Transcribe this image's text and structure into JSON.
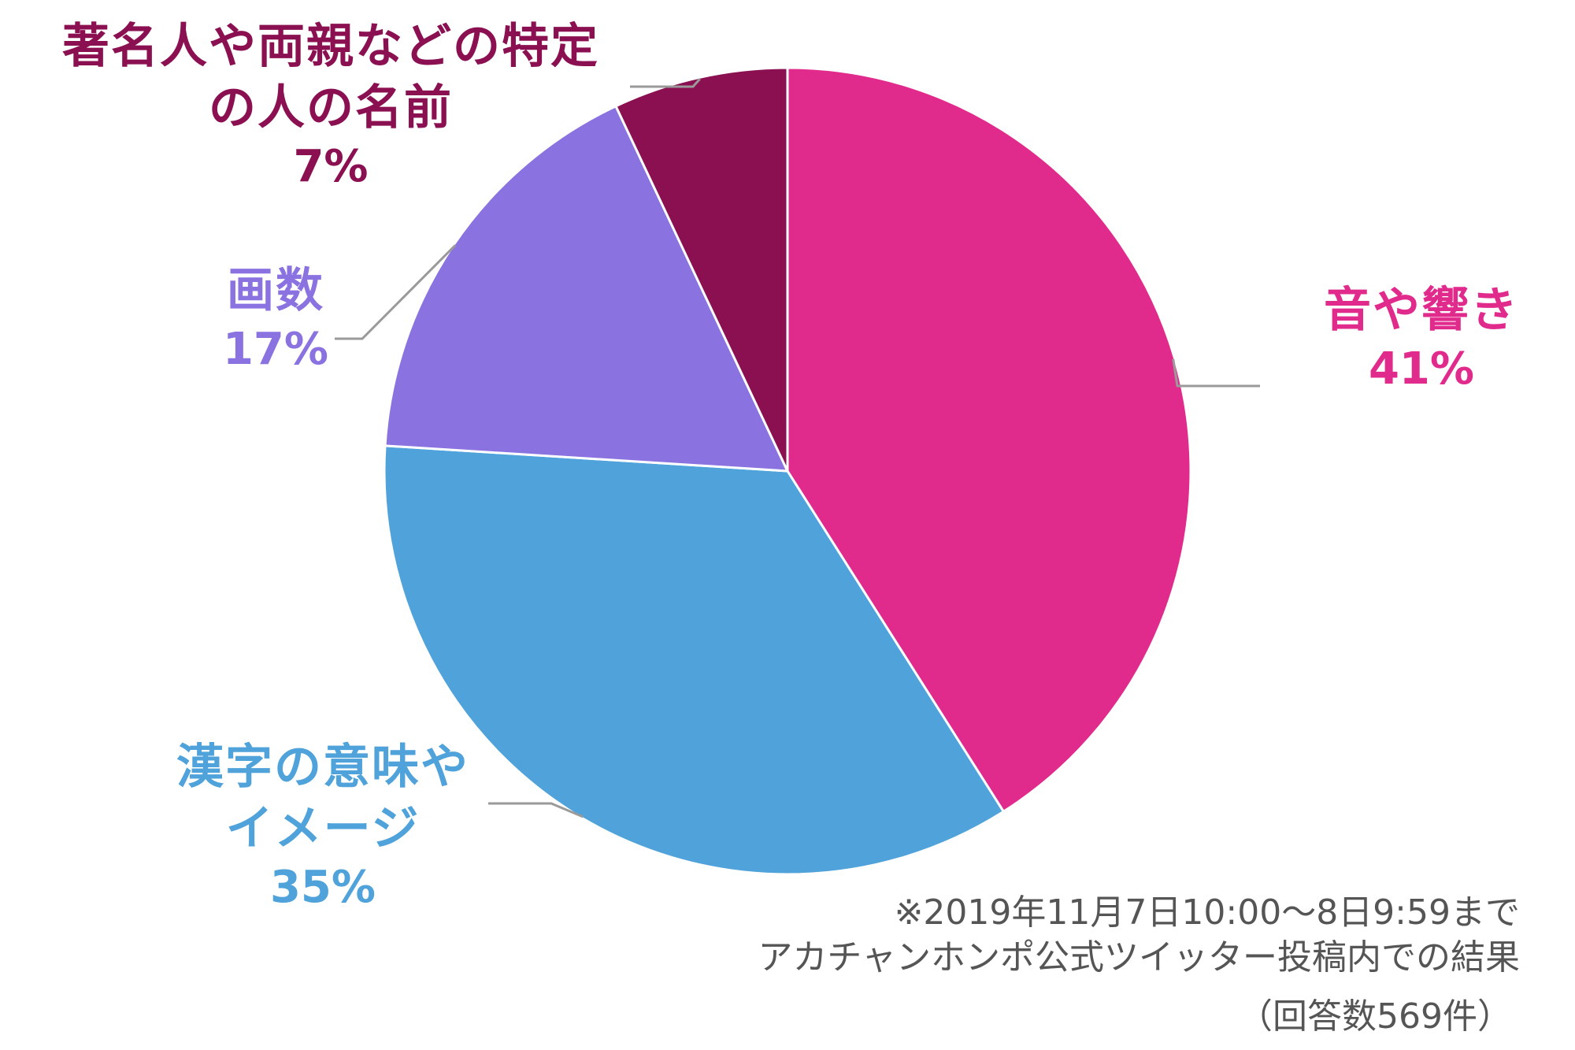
{
  "chart_data": {
    "type": "pie",
    "start_angle_deg": 0,
    "direction": "clockwise",
    "slices": [
      {
        "label_lines": [
          "音や響き"
        ],
        "value": 41,
        "value_label": "41%",
        "color": "#e02b8d"
      },
      {
        "label_lines": [
          "漢字の意味や",
          "イメージ"
        ],
        "value": 35,
        "value_label": "35%",
        "color": "#4fa3da"
      },
      {
        "label_lines": [
          "画数"
        ],
        "value": 17,
        "value_label": "17%",
        "color": "#8a72e0"
      },
      {
        "label_lines": [
          "著名人や両親などの特定",
          "の人の名前"
        ],
        "value": 7,
        "value_label": "7%",
        "color": "#8b1052"
      }
    ],
    "label_colors": [
      "#e02b8d",
      "#4fa3da",
      "#8a72e0",
      "#8b1052"
    ]
  },
  "notes": {
    "line1": "※2019年11月7日10:00～8日9:59まで",
    "line2": "アカチャンホンポ公式ツイッター投稿内での結果",
    "line3": "（回答数569件）"
  },
  "colors": {
    "leader_line": "#9a9a9a",
    "slice_border": "#ffffff",
    "note_text": "#555555"
  }
}
